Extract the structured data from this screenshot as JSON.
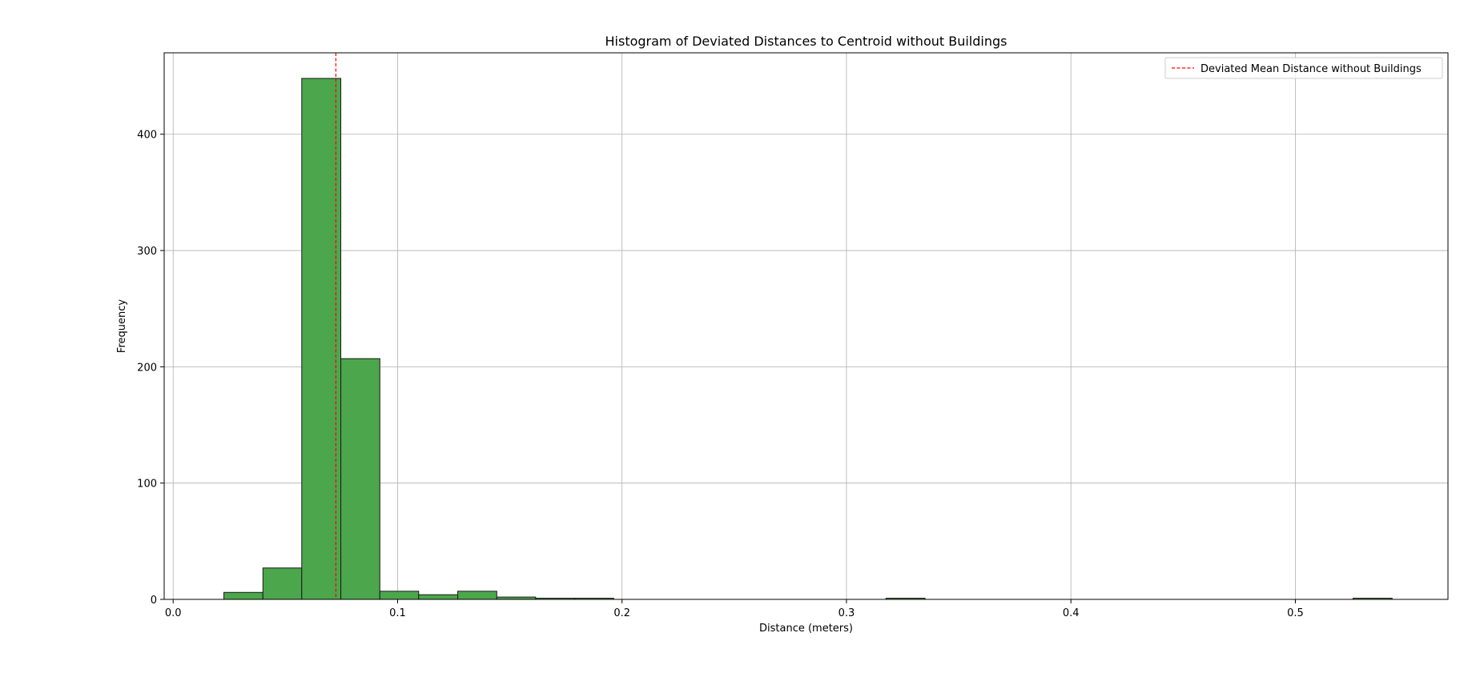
{
  "chart_data": {
    "type": "bar",
    "title": "Histogram of Deviated Distances to Centroid without Buildings",
    "xlabel": "Distance (meters)",
    "ylabel": "Frequency",
    "xlim": [
      -0.004,
      0.568
    ],
    "ylim": [
      0,
      470
    ],
    "grid": true,
    "legend_position": "top-right",
    "x_ticks": [
      0.0,
      0.1,
      0.2,
      0.3,
      0.4,
      0.5
    ],
    "x_tick_labels": [
      "0.0",
      "0.1",
      "0.2",
      "0.3",
      "0.4",
      "0.5"
    ],
    "y_ticks": [
      0,
      100,
      200,
      300,
      400
    ],
    "y_tick_labels": [
      "0",
      "100",
      "200",
      "300",
      "400"
    ],
    "bar_color": "#4ca64c",
    "bar_edge_color": "#1a1a1a",
    "bins": [
      {
        "start": 0.0226,
        "end": 0.04,
        "count": 6
      },
      {
        "start": 0.04,
        "end": 0.0573,
        "count": 27
      },
      {
        "start": 0.0573,
        "end": 0.0747,
        "count": 448
      },
      {
        "start": 0.0747,
        "end": 0.0921,
        "count": 207
      },
      {
        "start": 0.0921,
        "end": 0.1094,
        "count": 7
      },
      {
        "start": 0.1094,
        "end": 0.1268,
        "count": 4
      },
      {
        "start": 0.1268,
        "end": 0.1442,
        "count": 7
      },
      {
        "start": 0.1442,
        "end": 0.1615,
        "count": 2
      },
      {
        "start": 0.1615,
        "end": 0.1789,
        "count": 1
      },
      {
        "start": 0.1789,
        "end": 0.1963,
        "count": 1
      },
      {
        "start": 0.3176,
        "end": 0.335,
        "count": 1
      },
      {
        "start": 0.5257,
        "end": 0.5431,
        "count": 1
      }
    ],
    "mean_line": {
      "x": 0.0725,
      "label": "Deviated Mean Distance without Buildings",
      "color": "#ff0000"
    }
  }
}
